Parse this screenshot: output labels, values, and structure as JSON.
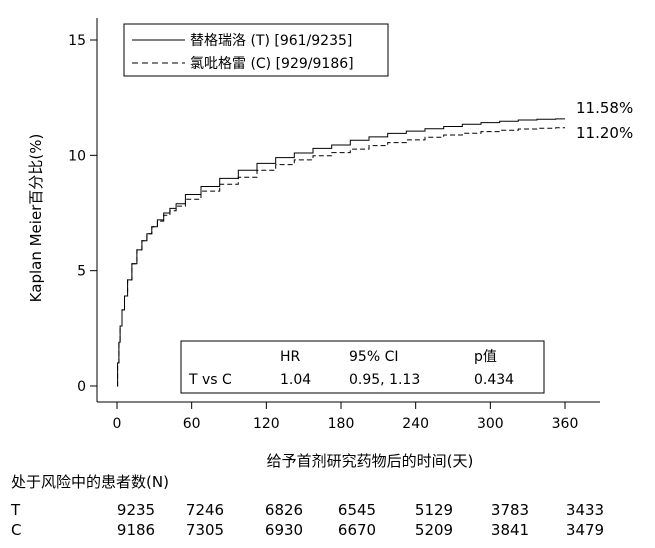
{
  "chart_data": {
    "type": "line",
    "xlabel": "给予首剂研究药物后的时间(天)",
    "ylabel": "Kaplan Meier百分比(%)",
    "xlim": [
      0,
      360
    ],
    "ylim": [
      0,
      15
    ],
    "x_ticks": [
      0,
      60,
      120,
      180,
      240,
      300,
      360
    ],
    "y_ticks": [
      0,
      5,
      10,
      15
    ],
    "grid": false,
    "legend_position": "top-left",
    "series": [
      {
        "name": "替格瑞洛 (T) [961/9235]",
        "style": "solid",
        "end_label": "11.58%",
        "points": [
          [
            0,
            0
          ],
          [
            1,
            1.0
          ],
          [
            2,
            1.9
          ],
          [
            3,
            2.6
          ],
          [
            5,
            3.3
          ],
          [
            7,
            3.9
          ],
          [
            10,
            4.6
          ],
          [
            14,
            5.3
          ],
          [
            18,
            5.9
          ],
          [
            22,
            6.3
          ],
          [
            26,
            6.6
          ],
          [
            30,
            6.9
          ],
          [
            35,
            7.2
          ],
          [
            40,
            7.5
          ],
          [
            45,
            7.7
          ],
          [
            50,
            7.9
          ],
          [
            60,
            8.3
          ],
          [
            75,
            8.65
          ],
          [
            90,
            9.0
          ],
          [
            105,
            9.35
          ],
          [
            120,
            9.65
          ],
          [
            135,
            9.9
          ],
          [
            150,
            10.1
          ],
          [
            165,
            10.3
          ],
          [
            180,
            10.45
          ],
          [
            195,
            10.65
          ],
          [
            210,
            10.8
          ],
          [
            225,
            10.95
          ],
          [
            240,
            11.05
          ],
          [
            255,
            11.15
          ],
          [
            270,
            11.25
          ],
          [
            285,
            11.35
          ],
          [
            300,
            11.42
          ],
          [
            315,
            11.48
          ],
          [
            330,
            11.53
          ],
          [
            345,
            11.56
          ],
          [
            360,
            11.58
          ]
        ]
      },
      {
        "name": "氯吡格雷 (C) [929/9186]",
        "style": "dashed",
        "end_label": "11.20%",
        "points": [
          [
            0,
            0
          ],
          [
            1,
            1.0
          ],
          [
            2,
            1.9
          ],
          [
            3,
            2.6
          ],
          [
            5,
            3.3
          ],
          [
            7,
            3.9
          ],
          [
            10,
            4.6
          ],
          [
            14,
            5.3
          ],
          [
            18,
            5.9
          ],
          [
            22,
            6.3
          ],
          [
            26,
            6.6
          ],
          [
            30,
            6.9
          ],
          [
            35,
            7.15
          ],
          [
            40,
            7.4
          ],
          [
            45,
            7.6
          ],
          [
            50,
            7.8
          ],
          [
            60,
            8.1
          ],
          [
            75,
            8.45
          ],
          [
            90,
            8.75
          ],
          [
            105,
            9.05
          ],
          [
            120,
            9.35
          ],
          [
            135,
            9.6
          ],
          [
            150,
            9.8
          ],
          [
            165,
            9.98
          ],
          [
            180,
            10.12
          ],
          [
            195,
            10.27
          ],
          [
            210,
            10.42
          ],
          [
            225,
            10.55
          ],
          [
            240,
            10.67
          ],
          [
            255,
            10.78
          ],
          [
            270,
            10.88
          ],
          [
            285,
            10.96
          ],
          [
            300,
            11.03
          ],
          [
            315,
            11.09
          ],
          [
            330,
            11.14
          ],
          [
            345,
            11.17
          ],
          [
            360,
            11.2
          ]
        ]
      }
    ],
    "stats_box": {
      "headers": [
        "",
        "HR",
        "95% CI",
        "p值"
      ],
      "row": [
        "T vs C",
        "1.04",
        "0.95, 1.13",
        "0.434"
      ]
    },
    "risk_table": {
      "title": "处于风险中的患者数(N)",
      "rows": [
        {
          "label": "T",
          "values": [
            "9235",
            "7246",
            "6826",
            "6545",
            "5129",
            "3783",
            "3433"
          ]
        },
        {
          "label": "C",
          "values": [
            "9186",
            "7305",
            "6930",
            "6670",
            "5209",
            "3841",
            "3479"
          ]
        }
      ]
    }
  }
}
